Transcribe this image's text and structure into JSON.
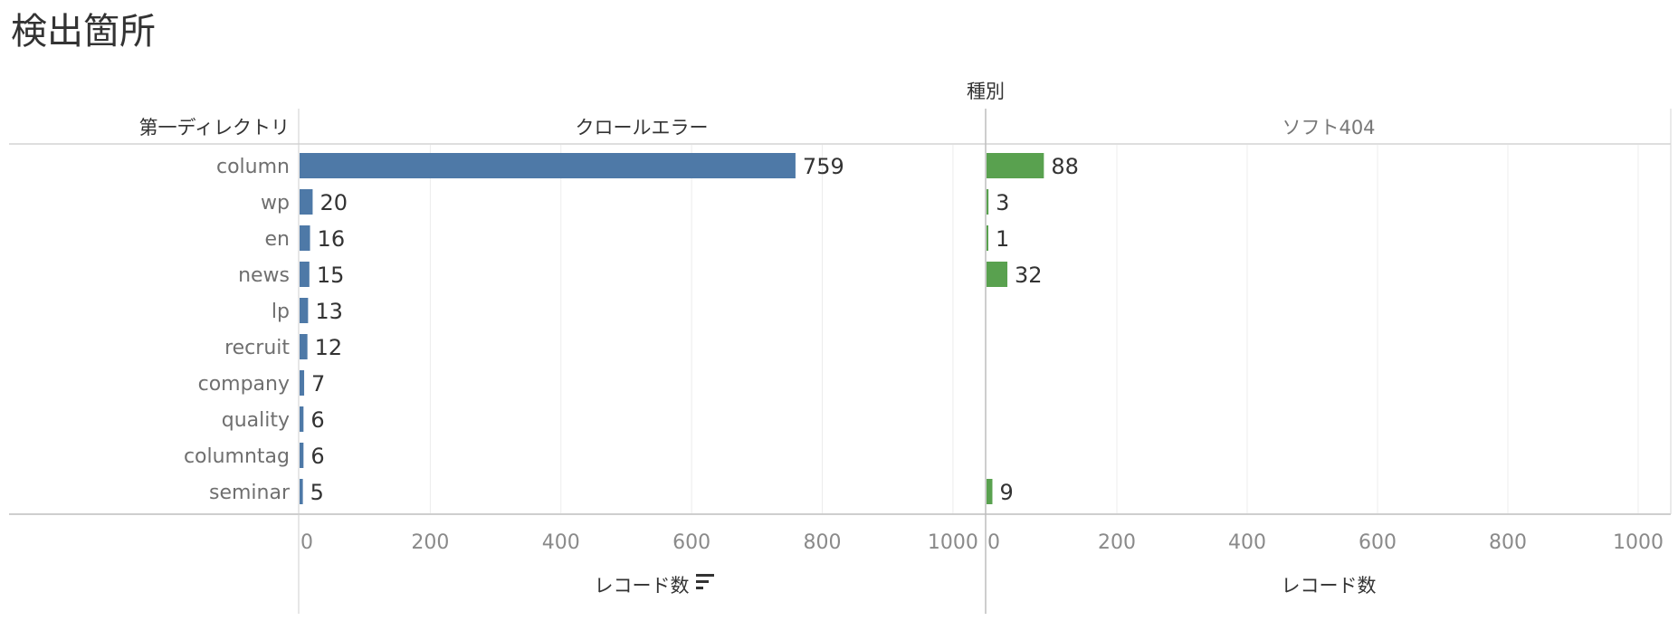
{
  "page": {
    "title": "検出箇所",
    "column_header": "種別",
    "row_header": "第一ディレクトリ"
  },
  "chart_data": {
    "type": "bar",
    "orientation": "horizontal",
    "categories": [
      "column",
      "wp",
      "en",
      "news",
      "lp",
      "recruit",
      "company",
      "quality",
      "columntag",
      "seminar"
    ],
    "series": [
      {
        "name": "クロールエラー",
        "color": "#4e79a7",
        "values": [
          759,
          20,
          16,
          15,
          13,
          12,
          7,
          6,
          6,
          5
        ]
      },
      {
        "name": "ソフト404",
        "color": "#59a14f",
        "values": [
          88,
          3,
          1,
          32,
          null,
          null,
          null,
          null,
          null,
          9
        ]
      }
    ],
    "xlabel": "レコード数",
    "xlim": [
      0,
      1050
    ],
    "xticks": [
      0,
      200,
      400,
      600,
      800,
      1000
    ],
    "grid": true,
    "sort_icon": "sort-descending-icon"
  }
}
